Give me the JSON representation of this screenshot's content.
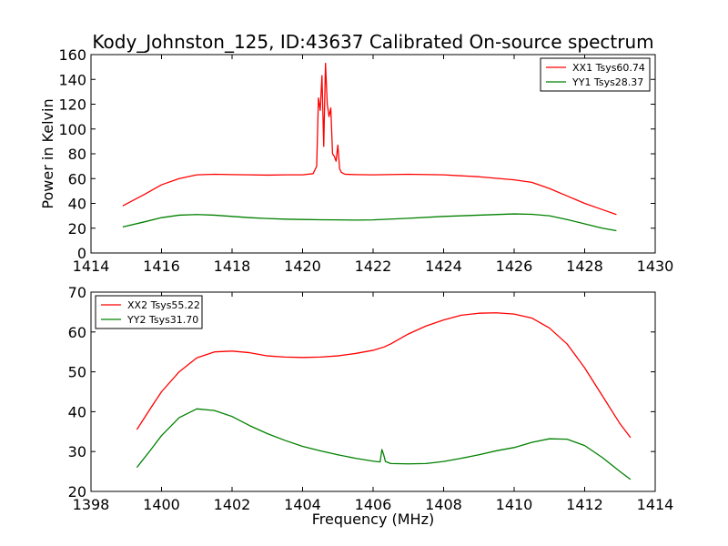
{
  "figure": {
    "title": "Kody_Johnston_125, ID:43637 Calibrated On-source spectrum",
    "xlabel": "Frequency (MHz)",
    "ylabel": "Power in Kelvin"
  },
  "chart_data": [
    {
      "type": "line",
      "title": "Kody_Johnston_125, ID:43637 Calibrated On-source spectrum",
      "xlabel": "",
      "ylabel": "Power in Kelvin",
      "xlim": [
        1414,
        1430
      ],
      "ylim": [
        0,
        160
      ],
      "xticks": [
        1414,
        1416,
        1418,
        1420,
        1422,
        1424,
        1426,
        1428,
        1430
      ],
      "yticks": [
        0,
        20,
        40,
        60,
        80,
        100,
        120,
        140,
        160
      ],
      "legend_position": "top-right",
      "series": [
        {
          "name": "XX1 Tsys60.74",
          "color": "#ff0000",
          "x": [
            1414.9,
            1415.5,
            1416.0,
            1416.5,
            1417.0,
            1417.5,
            1418.0,
            1418.5,
            1419.0,
            1419.5,
            1420.0,
            1420.3,
            1420.4,
            1420.45,
            1420.5,
            1420.55,
            1420.6,
            1420.65,
            1420.7,
            1420.75,
            1420.8,
            1420.85,
            1420.9,
            1420.95,
            1421.0,
            1421.05,
            1421.1,
            1421.2,
            1421.5,
            1422.0,
            1423.0,
            1424.0,
            1425.0,
            1426.0,
            1426.5,
            1427.0,
            1427.5,
            1428.0,
            1428.5,
            1428.9
          ],
          "y": [
            38,
            47,
            55,
            60,
            63,
            63.5,
            63.2,
            63,
            62.8,
            63,
            63,
            64,
            70,
            125,
            115,
            143,
            86,
            153,
            120,
            110,
            117,
            80,
            78,
            74,
            87,
            68,
            65,
            63.5,
            63.2,
            63,
            63.5,
            63,
            61.5,
            59,
            57,
            52,
            46,
            40,
            35,
            31
          ]
        },
        {
          "name": "YY1 Tsys28.37",
          "color": "#008000",
          "x": [
            1414.9,
            1415.5,
            1416.0,
            1416.5,
            1417.0,
            1417.5,
            1418.0,
            1418.5,
            1419.0,
            1419.5,
            1420.0,
            1420.5,
            1421.0,
            1421.5,
            1422.0,
            1423.0,
            1424.0,
            1425.0,
            1426.0,
            1426.5,
            1427.0,
            1427.5,
            1428.0,
            1428.5,
            1428.9
          ],
          "y": [
            21,
            25,
            28.5,
            30.5,
            31,
            30.5,
            29.5,
            28.5,
            27.8,
            27.3,
            27,
            26.8,
            26.7,
            26.5,
            26.7,
            28,
            29.5,
            30.5,
            31.5,
            31.2,
            30,
            27,
            23.5,
            20,
            18
          ]
        }
      ]
    },
    {
      "type": "line",
      "title": "",
      "xlabel": "Frequency (MHz)",
      "ylabel": "",
      "xlim": [
        1398,
        1414
      ],
      "ylim": [
        20,
        70
      ],
      "xticks": [
        1398,
        1400,
        1402,
        1404,
        1406,
        1408,
        1410,
        1412,
        1414
      ],
      "yticks": [
        20,
        30,
        40,
        50,
        60,
        70
      ],
      "legend_position": "top-left",
      "series": [
        {
          "name": "XX2 Tsys55.22",
          "color": "#ff0000",
          "x": [
            1399.3,
            1399.7,
            1400.0,
            1400.5,
            1401.0,
            1401.5,
            1402.0,
            1402.5,
            1403.0,
            1403.5,
            1404.0,
            1404.5,
            1405.0,
            1405.5,
            1406.0,
            1406.3,
            1406.5,
            1407.0,
            1407.5,
            1408.0,
            1408.5,
            1409.0,
            1409.5,
            1410.0,
            1410.5,
            1411.0,
            1411.5,
            1412.0,
            1412.5,
            1413.0,
            1413.3
          ],
          "y": [
            35.5,
            41,
            45,
            50,
            53.5,
            55,
            55.2,
            54.8,
            54,
            53.7,
            53.6,
            53.7,
            54,
            54.6,
            55.4,
            56.2,
            57,
            59.5,
            61.5,
            63,
            64.2,
            64.7,
            64.8,
            64.5,
            63.5,
            61,
            57,
            51,
            44,
            37,
            33.5
          ]
        },
        {
          "name": "YY2 Tsys31.70",
          "color": "#008000",
          "x": [
            1399.3,
            1399.7,
            1400.0,
            1400.5,
            1401.0,
            1401.5,
            1402.0,
            1402.5,
            1403.0,
            1403.5,
            1404.0,
            1404.5,
            1405.0,
            1405.5,
            1406.0,
            1406.2,
            1406.25,
            1406.3,
            1406.35,
            1406.5,
            1407.0,
            1407.5,
            1408.0,
            1408.5,
            1409.0,
            1409.5,
            1410.0,
            1410.5,
            1411.0,
            1411.5,
            1412.0,
            1412.5,
            1413.0,
            1413.3
          ],
          "y": [
            26,
            30.5,
            34,
            38.5,
            40.7,
            40.3,
            38.8,
            36.5,
            34.5,
            32.8,
            31.3,
            30.2,
            29.2,
            28.3,
            27.6,
            27.4,
            30.5,
            29.2,
            27.5,
            27,
            26.9,
            27,
            27.5,
            28.3,
            29.2,
            30.2,
            31,
            32.3,
            33.2,
            33.1,
            31.5,
            28.5,
            25,
            23
          ]
        }
      ]
    }
  ]
}
